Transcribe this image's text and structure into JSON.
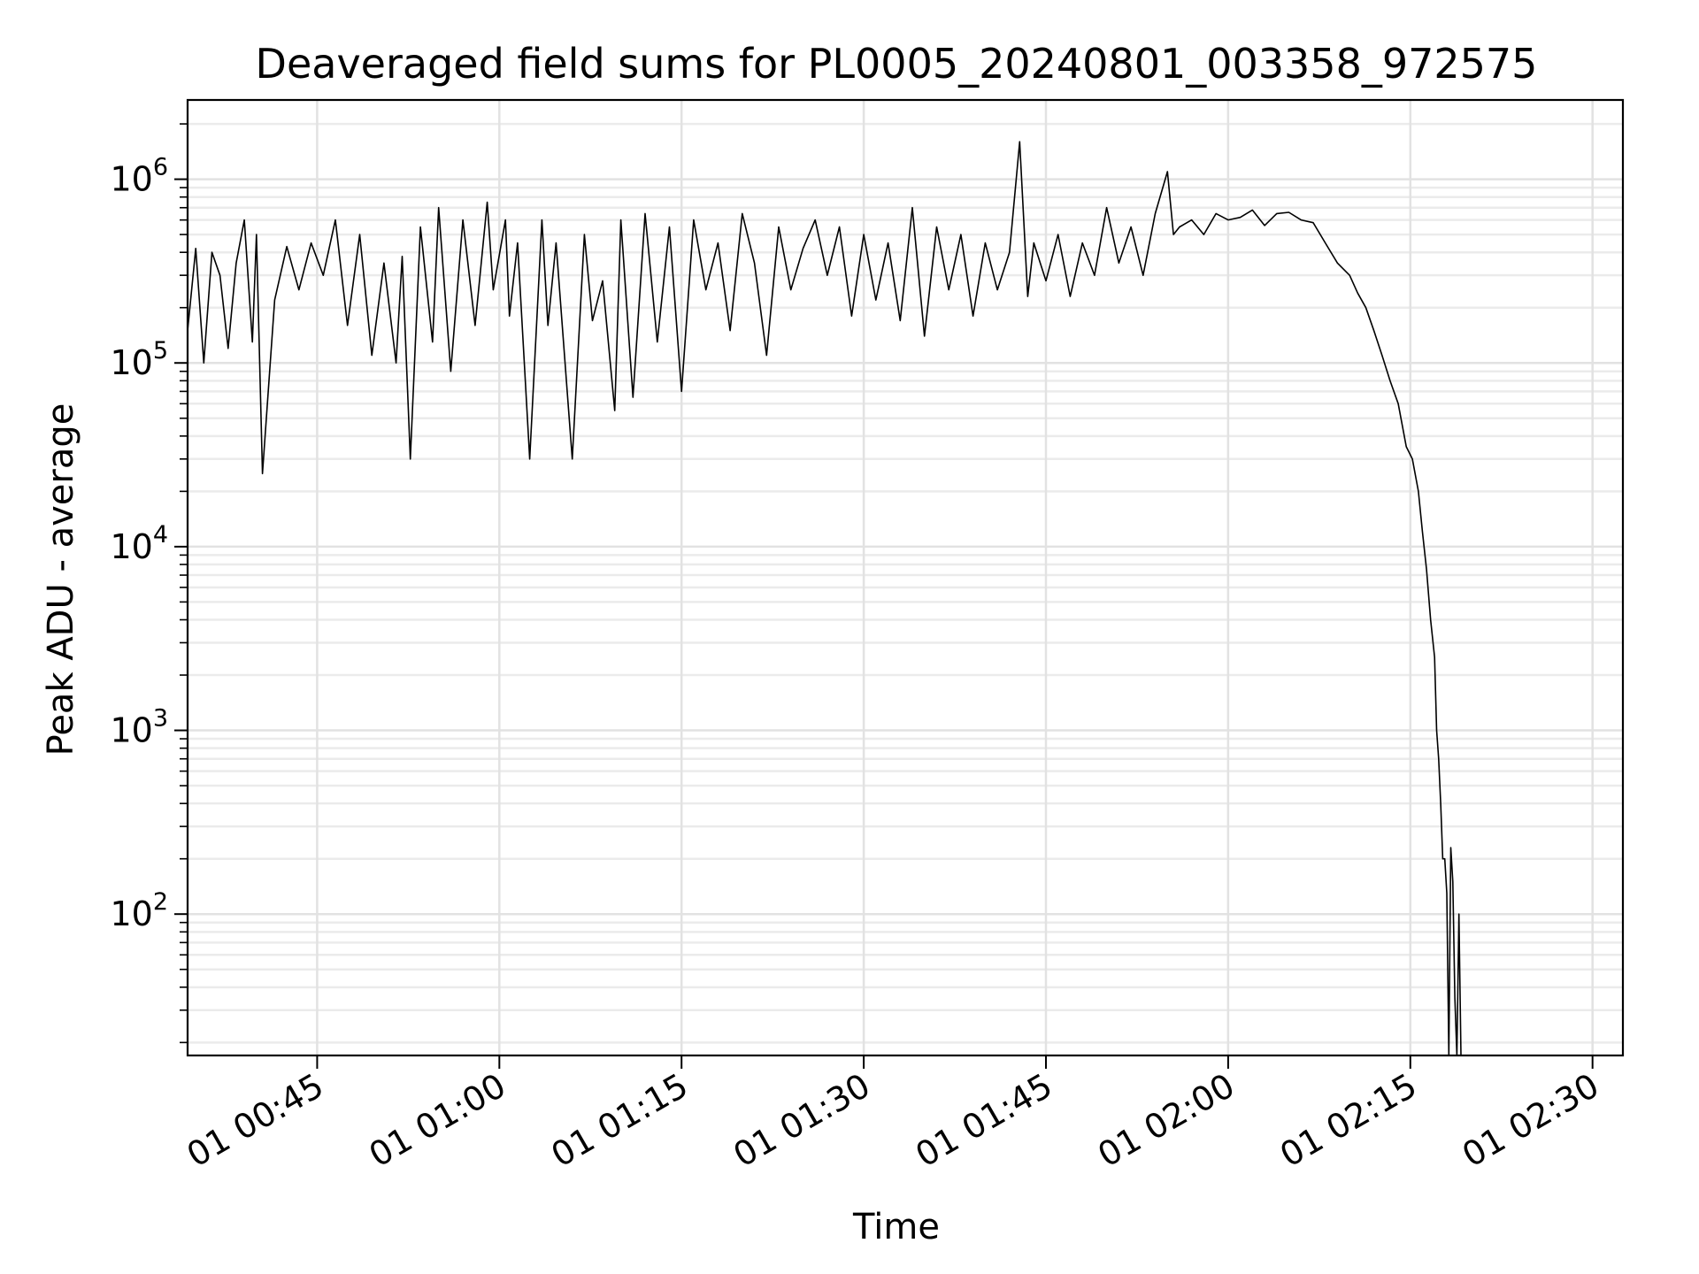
{
  "chart_data": {
    "type": "line",
    "title": "Deaveraged field sums for PL0005_20240801_003358_972575",
    "xlabel": "Time",
    "ylabel": "Peak ADU - average",
    "y_scale": "log",
    "ylim": [
      17,
      2700000
    ],
    "xlim": [
      "2024-08-01T00:34:20",
      "2024-08-01T02:32:30"
    ],
    "grid": true,
    "x_ticks": [
      {
        "t": "2024-08-01T00:45:00",
        "label": "01 00:45"
      },
      {
        "t": "2024-08-01T01:00:00",
        "label": "01 01:00"
      },
      {
        "t": "2024-08-01T01:15:00",
        "label": "01 01:15"
      },
      {
        "t": "2024-08-01T01:30:00",
        "label": "01 01:30"
      },
      {
        "t": "2024-08-01T01:45:00",
        "label": "01 01:45"
      },
      {
        "t": "2024-08-01T02:00:00",
        "label": "01 02:00"
      },
      {
        "t": "2024-08-01T02:15:00",
        "label": "01 02:15"
      },
      {
        "t": "2024-08-01T02:30:00",
        "label": "01 02:30"
      }
    ],
    "y_ticks": [
      {
        "v": 100,
        "base": "10",
        "exp": "2"
      },
      {
        "v": 1000,
        "base": "10",
        "exp": "3"
      },
      {
        "v": 10000,
        "base": "10",
        "exp": "4"
      },
      {
        "v": 100000,
        "base": "10",
        "exp": "5"
      },
      {
        "v": 1000000,
        "base": "10",
        "exp": "6"
      }
    ],
    "series": [
      {
        "color": "#000000",
        "x": [
          "2024-08-01T00:34:20",
          "2024-08-01T00:35:00",
          "2024-08-01T00:35:40",
          "2024-08-01T00:36:20",
          "2024-08-01T00:37:00",
          "2024-08-01T00:37:40",
          "2024-08-01T00:38:20",
          "2024-08-01T00:39:00",
          "2024-08-01T00:39:40",
          "2024-08-01T00:40:00",
          "2024-08-01T00:40:30",
          "2024-08-01T00:41:30",
          "2024-08-01T00:42:30",
          "2024-08-01T00:43:30",
          "2024-08-01T00:44:30",
          "2024-08-01T00:45:30",
          "2024-08-01T00:46:30",
          "2024-08-01T00:47:30",
          "2024-08-01T00:48:30",
          "2024-08-01T00:49:30",
          "2024-08-01T00:50:30",
          "2024-08-01T00:51:30",
          "2024-08-01T00:52:00",
          "2024-08-01T00:52:40",
          "2024-08-01T00:53:30",
          "2024-08-01T00:54:30",
          "2024-08-01T00:55:00",
          "2024-08-01T00:56:00",
          "2024-08-01T00:57:00",
          "2024-08-01T00:58:00",
          "2024-08-01T00:59:00",
          "2024-08-01T00:59:30",
          "2024-08-01T01:00:30",
          "2024-08-01T01:00:50",
          "2024-08-01T01:01:30",
          "2024-08-01T01:02:30",
          "2024-08-01T01:03:30",
          "2024-08-01T01:04:00",
          "2024-08-01T01:04:40",
          "2024-08-01T01:06:00",
          "2024-08-01T01:07:00",
          "2024-08-01T01:07:40",
          "2024-08-01T01:08:30",
          "2024-08-01T01:09:30",
          "2024-08-01T01:10:00",
          "2024-08-01T01:11:00",
          "2024-08-01T01:12:00",
          "2024-08-01T01:13:00",
          "2024-08-01T01:14:00",
          "2024-08-01T01:15:00",
          "2024-08-01T01:16:00",
          "2024-08-01T01:17:00",
          "2024-08-01T01:18:00",
          "2024-08-01T01:19:00",
          "2024-08-01T01:20:00",
          "2024-08-01T01:21:00",
          "2024-08-01T01:22:00",
          "2024-08-01T01:23:00",
          "2024-08-01T01:24:00",
          "2024-08-01T01:25:00",
          "2024-08-01T01:26:00",
          "2024-08-01T01:27:00",
          "2024-08-01T01:28:00",
          "2024-08-01T01:29:00",
          "2024-08-01T01:30:00",
          "2024-08-01T01:31:00",
          "2024-08-01T01:32:00",
          "2024-08-01T01:33:00",
          "2024-08-01T01:34:00",
          "2024-08-01T01:35:00",
          "2024-08-01T01:36:00",
          "2024-08-01T01:37:00",
          "2024-08-01T01:38:00",
          "2024-08-01T01:39:00",
          "2024-08-01T01:40:00",
          "2024-08-01T01:41:00",
          "2024-08-01T01:42:00",
          "2024-08-01T01:42:50",
          "2024-08-01T01:43:30",
          "2024-08-01T01:44:00",
          "2024-08-01T01:45:00",
          "2024-08-01T01:46:00",
          "2024-08-01T01:47:00",
          "2024-08-01T01:48:00",
          "2024-08-01T01:49:00",
          "2024-08-01T01:50:00",
          "2024-08-01T01:51:00",
          "2024-08-01T01:52:00",
          "2024-08-01T01:53:00",
          "2024-08-01T01:54:00",
          "2024-08-01T01:55:00",
          "2024-08-01T01:55:30",
          "2024-08-01T01:56:00",
          "2024-08-01T01:57:00",
          "2024-08-01T01:58:00",
          "2024-08-01T01:59:00",
          "2024-08-01T02:00:00",
          "2024-08-01T02:01:00",
          "2024-08-01T02:02:00",
          "2024-08-01T02:03:00",
          "2024-08-01T02:04:00",
          "2024-08-01T02:05:00",
          "2024-08-01T02:06:00",
          "2024-08-01T02:07:00",
          "2024-08-01T02:08:00",
          "2024-08-01T02:09:00",
          "2024-08-01T02:10:00",
          "2024-08-01T02:10:40",
          "2024-08-01T02:11:20",
          "2024-08-01T02:12:00",
          "2024-08-01T02:12:40",
          "2024-08-01T02:13:20",
          "2024-08-01T02:14:00",
          "2024-08-01T02:14:40",
          "2024-08-01T02:15:10",
          "2024-08-01T02:15:40",
          "2024-08-01T02:16:00",
          "2024-08-01T02:16:20",
          "2024-08-01T02:16:40",
          "2024-08-01T02:17:00",
          "2024-08-01T02:17:10",
          "2024-08-01T02:17:20",
          "2024-08-01T02:17:30",
          "2024-08-01T02:17:40",
          "2024-08-01T02:17:50",
          "2024-08-01T02:18:00",
          "2024-08-01T02:18:10",
          "2024-08-01T02:18:20",
          "2024-08-01T02:18:30",
          "2024-08-01T02:18:40",
          "2024-08-01T02:18:50",
          "2024-08-01T02:19:00",
          "2024-08-01T02:19:10"
        ],
        "y": [
          150000,
          420000,
          100000,
          400000,
          300000,
          120000,
          350000,
          600000,
          130000,
          500000,
          25000,
          220000,
          430000,
          250000,
          450000,
          300000,
          600000,
          160000,
          500000,
          110000,
          350000,
          100000,
          380000,
          30000,
          550000,
          130000,
          700000,
          90000,
          600000,
          160000,
          750000,
          250000,
          600000,
          180000,
          450000,
          30000,
          600000,
          160000,
          450000,
          30000,
          500000,
          170000,
          280000,
          55000,
          600000,
          65000,
          650000,
          130000,
          550000,
          70000,
          600000,
          250000,
          450000,
          150000,
          650000,
          350000,
          110000,
          550000,
          250000,
          420000,
          600000,
          300000,
          550000,
          180000,
          500000,
          220000,
          450000,
          170000,
          700000,
          140000,
          550000,
          250000,
          500000,
          180000,
          450000,
          250000,
          400000,
          1600000,
          230000,
          450000,
          280000,
          500000,
          230000,
          450000,
          300000,
          700000,
          350000,
          550000,
          300000,
          650000,
          1100000,
          500000,
          550000,
          600000,
          500000,
          650000,
          600000,
          620000,
          680000,
          560000,
          650000,
          660000,
          600000,
          580000,
          450000,
          350000,
          300000,
          240000,
          200000,
          150000,
          110000,
          80000,
          60000,
          35000,
          30000,
          20000,
          12000,
          7500,
          4000,
          2500,
          1000,
          700,
          400,
          200,
          200,
          130,
          17,
          230,
          150,
          35,
          17,
          100,
          17
        ]
      }
    ]
  }
}
